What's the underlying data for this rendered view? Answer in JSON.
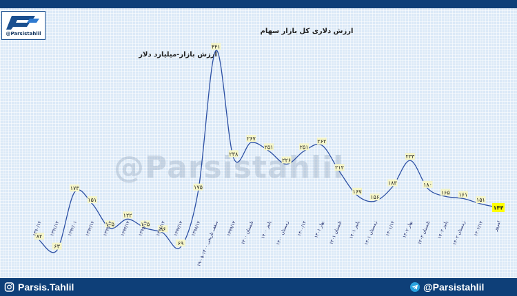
{
  "header": {
    "logo_handle": "@Parsistahlil"
  },
  "watermark": "@Parsistahlil",
  "footer": {
    "left_text": "Parsis.Tahlil",
    "right_text": "@Parsistahlil",
    "left_icon": "instagram-icon",
    "right_icon": "telegram-icon"
  },
  "colors": {
    "frame": "#0e3f78",
    "plot_bg": "#dbe9f7",
    "line": "#2c4fa3",
    "label_bg": "#f5f5c8",
    "last_label_bg": "#ffff00"
  },
  "chart_data": {
    "type": "line",
    "title": "ارزش دلاری کل بازار سهام",
    "series": [
      {
        "name": "ارزش بازار-میلیارد دلار",
        "labels": [
          "۸۲",
          "۶۳",
          "۱۷۳",
          "۱۵۱",
          "۱۰۵",
          "۱۲۲",
          "۱۰۵",
          "۹۶",
          "۶۹",
          "۱۷۵",
          "۴۴۱",
          "۲۳۸",
          "۲۶۷",
          "۲۵۱",
          "۲۲۶",
          "۲۵۱",
          "۲۶۲",
          "۲۱۲",
          "۱۶۷",
          "۱۵۶",
          "۱۸۳",
          "۲۳۳",
          "۱۸۰",
          "۱۶۵",
          "۱۶۱",
          "۱۵۱",
          "۱۴۴"
        ],
        "values": [
          82,
          63,
          173,
          151,
          105,
          122,
          105,
          96,
          69,
          175,
          441,
          238,
          267,
          251,
          226,
          251,
          262,
          212,
          167,
          156,
          183,
          233,
          180,
          165,
          161,
          151,
          144
        ]
      }
    ],
    "categories": [
      "۱۳۹۰/۱۲",
      "۱۳۹۱/۱۲",
      "۱۳۹۲/۰۱",
      "۱۳۹۲/۱۲",
      "۱۳۹۳/۱۲",
      "۱۳۹۴/۱۲",
      "۱۳۹۵/۱۲",
      "۱۳۹۶/۱۲",
      "۱۳۹۷/۱۲",
      "۱۳۹۸/۱۲",
      "سقف تاریخی ۱۴۰۰-۰۵-۱۹",
      "۱۳۹۹/۱۲",
      "تابستان ۱۴۰۰",
      "پاییز ۱۴۰۰",
      "زمستان ۱۴۰۰",
      "۱۴۰۰/۱۲",
      "بهار ۱۴۰۱",
      "تابستان ۱۴۰۱",
      "پاییز ۱۴۰۱",
      "زمستان ۱۴۰۱",
      "۱۴۰۱/۱۲",
      "بهار ۱۴۰۲",
      "تابستان ۱۴۰۲",
      "پاییز ۱۴۰۲",
      "زمستان ۱۴۰۲",
      "۱۴۰۲/۱۲",
      "امروز"
    ],
    "ylim": [
      0,
      480
    ],
    "grid": false,
    "legend": "top-left"
  }
}
